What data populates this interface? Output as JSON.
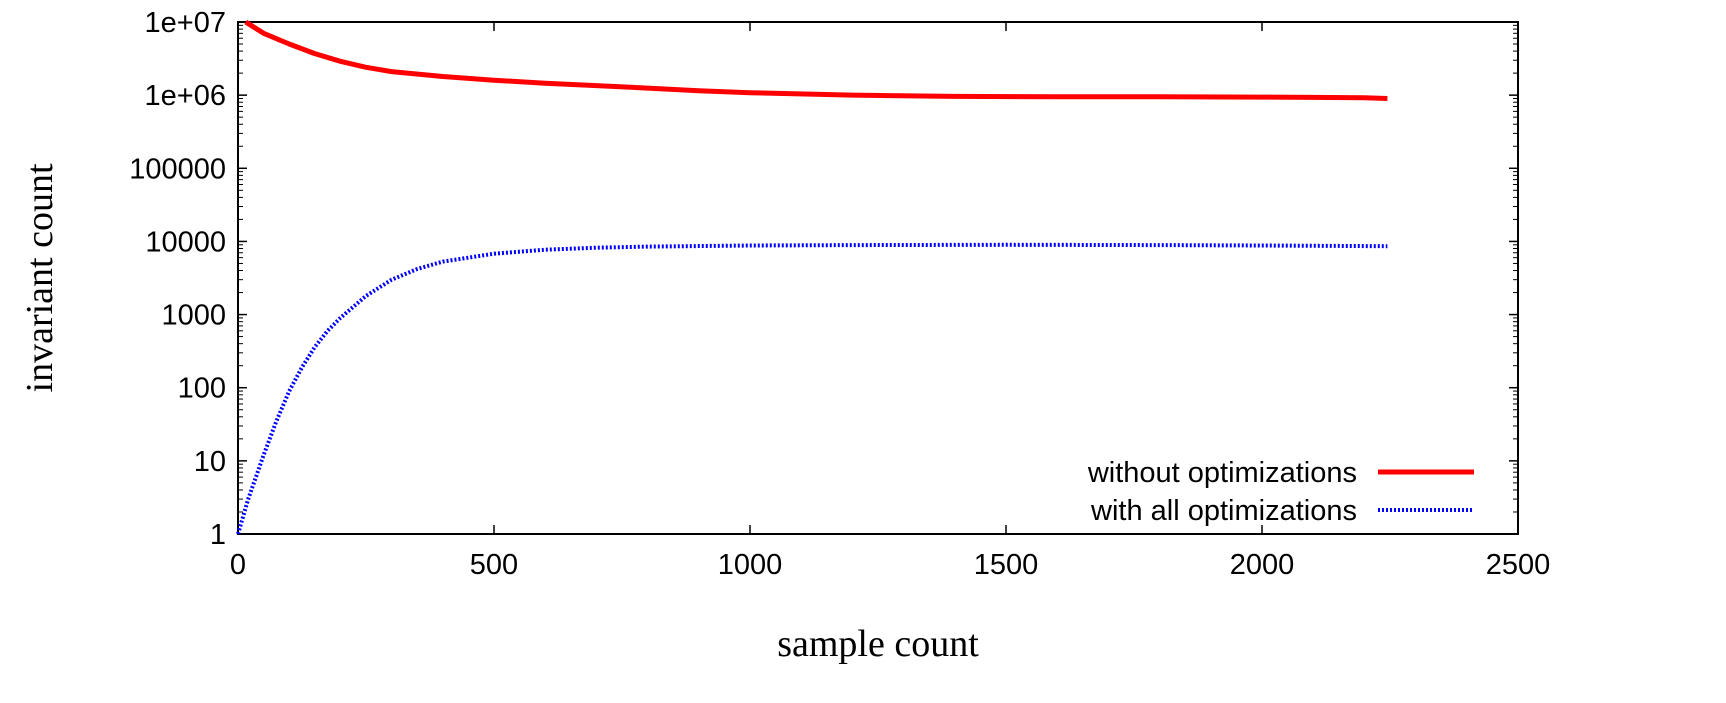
{
  "chart_data": {
    "type": "line",
    "title": "",
    "xlabel": "sample count",
    "ylabel": "invariant count",
    "xlim": [
      0,
      2500
    ],
    "ylim": [
      1,
      10000000
    ],
    "yscale": "log",
    "grid": false,
    "legend_position": "bottom-right",
    "x_ticks": [
      0,
      500,
      1000,
      1500,
      2000,
      2500
    ],
    "x_tick_labels": [
      "0",
      "500",
      "1000",
      "1500",
      "2000",
      "2500"
    ],
    "y_ticks": [
      1,
      10,
      100,
      1000,
      10000,
      100000,
      1000000,
      10000000
    ],
    "y_tick_labels": [
      "1",
      "10",
      "100",
      "1000",
      "10000",
      "100000",
      "1e+06",
      "1e+07"
    ],
    "series": [
      {
        "name": "without optimizations",
        "color": "#ff0000",
        "style": "solid",
        "x": [
          15,
          50,
          100,
          150,
          200,
          250,
          300,
          400,
          500,
          600,
          700,
          800,
          900,
          1000,
          1200,
          1400,
          1600,
          1800,
          2000,
          2100,
          2200,
          2245
        ],
        "y": [
          10000000,
          7000000,
          5000000,
          3700000,
          2900000,
          2400000,
          2100000,
          1800000,
          1600000,
          1450000,
          1350000,
          1250000,
          1150000,
          1080000,
          1000000,
          960000,
          950000,
          950000,
          940000,
          930000,
          920000,
          900000
        ]
      },
      {
        "name": "with all optimizations",
        "color": "#0000ff",
        "style": "dotted",
        "x": [
          0,
          20,
          50,
          75,
          100,
          125,
          150,
          175,
          200,
          250,
          300,
          350,
          400,
          500,
          600,
          700,
          800,
          1000,
          1200,
          1500,
          1800,
          2000,
          2245
        ],
        "y": [
          1,
          3,
          12,
          35,
          90,
          190,
          360,
          600,
          900,
          1800,
          3000,
          4200,
          5300,
          6800,
          7700,
          8200,
          8500,
          8800,
          8900,
          9000,
          8900,
          8800,
          8600
        ]
      }
    ]
  }
}
